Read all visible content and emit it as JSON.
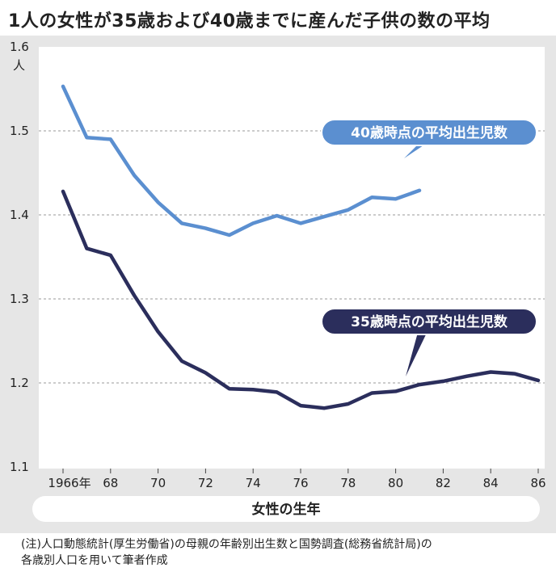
{
  "header": {
    "title": "1人の女性が35歳および40歳までに産んだ子供の数の平均"
  },
  "chart_data": {
    "type": "line",
    "title": "1人の女性が35歳および40歳までに産んだ子供の数の平均",
    "xlabel": "女性の生年",
    "ylabel": "人",
    "xlim": [
      1966,
      1986
    ],
    "ylim": [
      1.1,
      1.6
    ],
    "x_ticks": [
      1966,
      1968,
      1970,
      1972,
      1974,
      1976,
      1978,
      1980,
      1982,
      1984,
      1986
    ],
    "x_tick_labels": [
      "1966年",
      "68",
      "70",
      "72",
      "74",
      "76",
      "78",
      "80",
      "82",
      "84",
      "86"
    ],
    "y_ticks": [
      1.1,
      1.2,
      1.3,
      1.4,
      1.5,
      1.6
    ],
    "y_tick_labels": [
      "1.1",
      "1.2",
      "1.3",
      "1.4",
      "1.5",
      "1.6"
    ],
    "grid": "horizontal-dashed",
    "series": [
      {
        "name": "40歳時点の平均出生児数",
        "color": "#5b8fd0",
        "x": [
          1966,
          1967,
          1968,
          1969,
          1970,
          1971,
          1972,
          1973,
          1974,
          1975,
          1976,
          1977,
          1978,
          1979,
          1980,
          1981
        ],
        "y": [
          1.553,
          1.492,
          1.49,
          1.447,
          1.415,
          1.39,
          1.384,
          1.376,
          1.39,
          1.399,
          1.39,
          1.398,
          1.406,
          1.421,
          1.419,
          1.429
        ]
      },
      {
        "name": "35歳時点の平均出生児数",
        "color": "#2b2e5c",
        "x": [
          1966,
          1967,
          1968,
          1969,
          1970,
          1971,
          1972,
          1973,
          1974,
          1975,
          1976,
          1977,
          1978,
          1979,
          1980,
          1981,
          1982,
          1983,
          1984,
          1985,
          1986
        ],
        "y": [
          1.428,
          1.36,
          1.352,
          1.304,
          1.261,
          1.226,
          1.212,
          1.193,
          1.192,
          1.189,
          1.173,
          1.17,
          1.175,
          1.188,
          1.19,
          1.198,
          1.202,
          1.208,
          1.213,
          1.211,
          1.203
        ]
      }
    ]
  },
  "footnote": {
    "line1": "(注)人口動態統計(厚生労働省)の母親の年齢別出生数と国勢調査(総務省統計局)の",
    "line2": "各歳別人口を用いて筆者作成"
  }
}
